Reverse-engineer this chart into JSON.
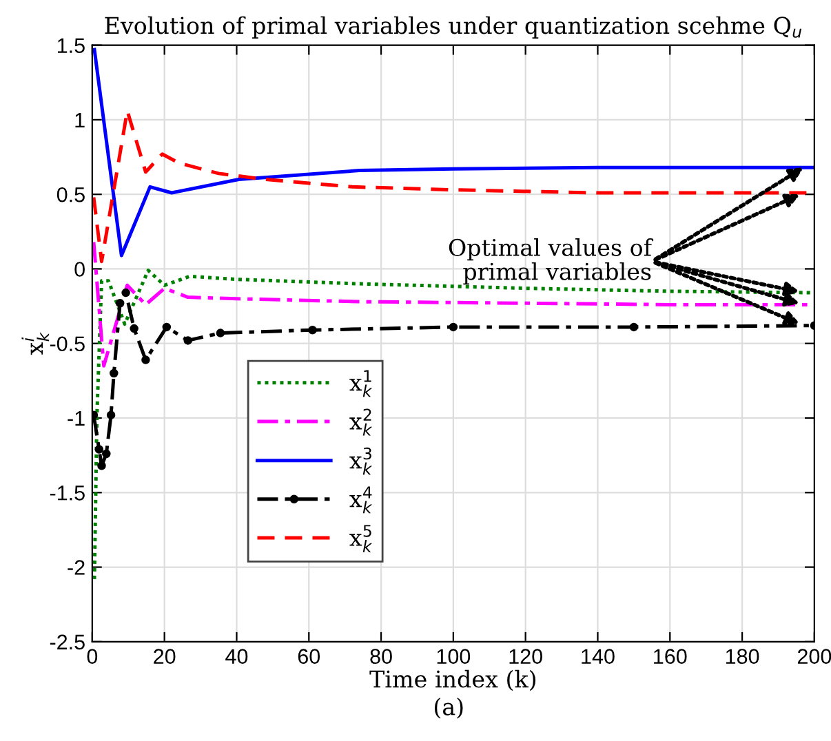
{
  "chart_data": {
    "type": "line",
    "title": "Evolution of primal variables under quantization scehme Q$_{u}$",
    "xlabel": "Time index (k)",
    "ylabel": "x$^{i}$$_{k}$",
    "series": [
      {
        "name": "x$^{1}$$_{k}$",
        "color": "#008000",
        "line_style": "dotted",
        "x": [
          0.6,
          1.3,
          2.6,
          4.5,
          9,
          15.5,
          20,
          27,
          40,
          74,
          120,
          160,
          200
        ],
        "values": [
          -2.08,
          -0.98,
          -0.08,
          -0.08,
          -0.37,
          -0.01,
          -0.11,
          -0.05,
          -0.07,
          -0.1,
          -0.13,
          -0.15,
          -0.16
        ]
      },
      {
        "name": "x$^{2}$$_{k}$",
        "color": "#ff00ff",
        "line_style": "dashdot",
        "x": [
          0.4,
          3.2,
          9.7,
          14.8,
          20,
          26.5,
          40,
          74,
          120,
          160,
          200
        ],
        "values": [
          0.18,
          -0.65,
          -0.11,
          -0.24,
          -0.13,
          -0.19,
          -0.2,
          -0.22,
          -0.23,
          -0.24,
          -0.24
        ]
      },
      {
        "name": "x$^{3}$$_{k}$",
        "color": "#0000ff",
        "line_style": "solid",
        "x": [
          0.6,
          8.1,
          16,
          22,
          40.6,
          74,
          100,
          140,
          200
        ],
        "values": [
          1.47,
          0.09,
          0.55,
          0.51,
          0.6,
          0.66,
          0.67,
          0.68,
          0.68
        ]
      },
      {
        "name": "x$^{4}$$_{k}$",
        "color": "#000000",
        "line_style": "dashdot",
        "marker": "circle",
        "x": [
          0.4,
          1.9,
          2.6,
          3.9,
          5.2,
          6,
          7.7,
          9.3,
          11.6,
          14.8,
          20.6,
          26.5,
          35.5,
          61,
          100,
          150,
          200
        ],
        "values": [
          -0.98,
          -1.21,
          -1.32,
          -1.24,
          -0.98,
          -0.7,
          -0.23,
          -0.16,
          -0.4,
          -0.61,
          -0.39,
          -0.48,
          -0.43,
          -0.41,
          -0.39,
          -0.39,
          -0.38
        ]
      },
      {
        "name": "x$^{5}$$_{k}$",
        "color": "#ff0000",
        "line_style": "dashed",
        "x": [
          0.4,
          2.6,
          9.7,
          14.8,
          19.4,
          24,
          35,
          48,
          72,
          100,
          140,
          200
        ],
        "values": [
          0.48,
          0.05,
          1.06,
          0.65,
          0.77,
          0.71,
          0.64,
          0.6,
          0.55,
          0.53,
          0.51,
          0.51
        ]
      }
    ],
    "xlim": [
      0,
      200
    ],
    "ylim": [
      -2.5,
      1.5
    ],
    "xticks": [
      0,
      20,
      40,
      60,
      80,
      100,
      120,
      140,
      160,
      180,
      200
    ],
    "yticks": [
      -2.5,
      -2,
      -1.5,
      -1,
      -0.5,
      0,
      0.5,
      1,
      1.5
    ],
    "grid": true,
    "legend": "left",
    "annotations": [
      {
        "text": "Optimal values of\nprimal variables",
        "x": 197,
        "y": 0.68
      },
      "(a)"
    ]
  }
}
